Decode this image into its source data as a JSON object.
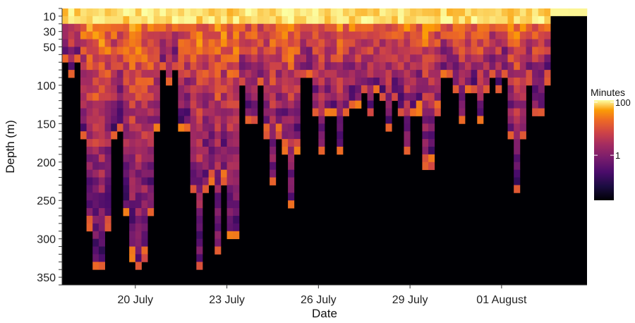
{
  "chart_data": {
    "type": "heatmap",
    "title": "",
    "xlabel": "Date",
    "ylabel": "Depth (m)",
    "x_tick_labels": [
      "20 July",
      "23 July",
      "26 July",
      "29 July",
      "01 August"
    ],
    "x_ticks_days": [
      2.4,
      5.4,
      8.4,
      11.4,
      14.4
    ],
    "y_tick_labels": [
      "10",
      "30",
      "50",
      "100",
      "150",
      "200",
      "250",
      "300",
      "350"
    ],
    "y_ticks": [
      10,
      30,
      50,
      100,
      150,
      200,
      250,
      300,
      350
    ],
    "ylim": [
      0,
      360
    ],
    "y_reversed": true,
    "depth_bin_m": 10,
    "x_range_days": [
      0,
      17.2
    ],
    "time_bin_days": 0.2,
    "data_end_day": 16.0,
    "color_scale": "inferno",
    "color_scale_type": "log",
    "legend": {
      "title": "Minutes",
      "position": "right",
      "tick_labels": [
        "100",
        "1"
      ],
      "tick_values": [
        100,
        1
      ],
      "range": [
        0.02,
        120
      ]
    },
    "dive_cycles": [
      {
        "start_day": 0.0,
        "end_day": 0.6,
        "max_depth_m": 90
      },
      {
        "start_day": 0.6,
        "end_day": 1.8,
        "max_depth_m": 340
      },
      {
        "start_day": 1.8,
        "end_day": 3.2,
        "max_depth_m": 340
      },
      {
        "start_day": 3.2,
        "end_day": 3.8,
        "max_depth_m": 100
      },
      {
        "start_day": 3.8,
        "end_day": 4.2,
        "max_depth_m": 190
      },
      {
        "start_day": 4.2,
        "end_day": 4.8,
        "max_depth_m": 340
      },
      {
        "start_day": 4.8,
        "end_day": 5.4,
        "max_depth_m": 320
      },
      {
        "start_day": 5.4,
        "end_day": 5.8,
        "max_depth_m": 360
      },
      {
        "start_day": 5.8,
        "end_day": 6.6,
        "max_depth_m": 150
      },
      {
        "start_day": 6.6,
        "end_day": 7.2,
        "max_depth_m": 230
      },
      {
        "start_day": 7.2,
        "end_day": 7.8,
        "max_depth_m": 260
      },
      {
        "start_day": 7.8,
        "end_day": 8.2,
        "max_depth_m": 100
      },
      {
        "start_day": 8.2,
        "end_day": 8.8,
        "max_depth_m": 190
      },
      {
        "start_day": 8.8,
        "end_day": 9.4,
        "max_depth_m": 190
      },
      {
        "start_day": 9.4,
        "end_day": 9.8,
        "max_depth_m": 150
      },
      {
        "start_day": 9.8,
        "end_day": 10.4,
        "max_depth_m": 140
      },
      {
        "start_day": 10.4,
        "end_day": 11.0,
        "max_depth_m": 160
      },
      {
        "start_day": 11.0,
        "end_day": 11.6,
        "max_depth_m": 190
      },
      {
        "start_day": 11.6,
        "end_day": 12.4,
        "max_depth_m": 210
      },
      {
        "start_day": 12.4,
        "end_day": 12.8,
        "max_depth_m": 100
      },
      {
        "start_day": 12.8,
        "end_day": 13.4,
        "max_depth_m": 150
      },
      {
        "start_day": 13.4,
        "end_day": 14.0,
        "max_depth_m": 150
      },
      {
        "start_day": 14.0,
        "end_day": 14.6,
        "max_depth_m": 110
      },
      {
        "start_day": 14.6,
        "end_day": 15.2,
        "max_depth_m": 240
      },
      {
        "start_day": 15.2,
        "end_day": 16.0,
        "max_depth_m": 140
      }
    ],
    "grid": false
  }
}
